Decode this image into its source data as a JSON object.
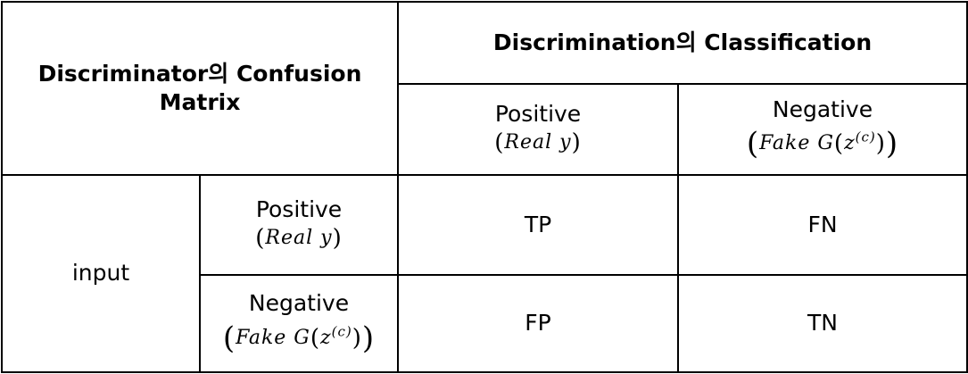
{
  "corner_header": "Discriminator의 Confusion Matrix",
  "classification_header": "Discrimination의 Classification",
  "column_headers": [
    {
      "label": "Positive",
      "sub": "(Real y)"
    },
    {
      "label": "Negative",
      "sub": "(Fake G(z^(c)))"
    }
  ],
  "row_group_label": "input",
  "row_headers": [
    {
      "label": "Positive",
      "sub": "(Real y)"
    },
    {
      "label": "Negative",
      "sub": "(Fake G(z^(c)))"
    }
  ],
  "cells": [
    [
      "TP",
      "FN"
    ],
    [
      "FP",
      "TN"
    ]
  ]
}
